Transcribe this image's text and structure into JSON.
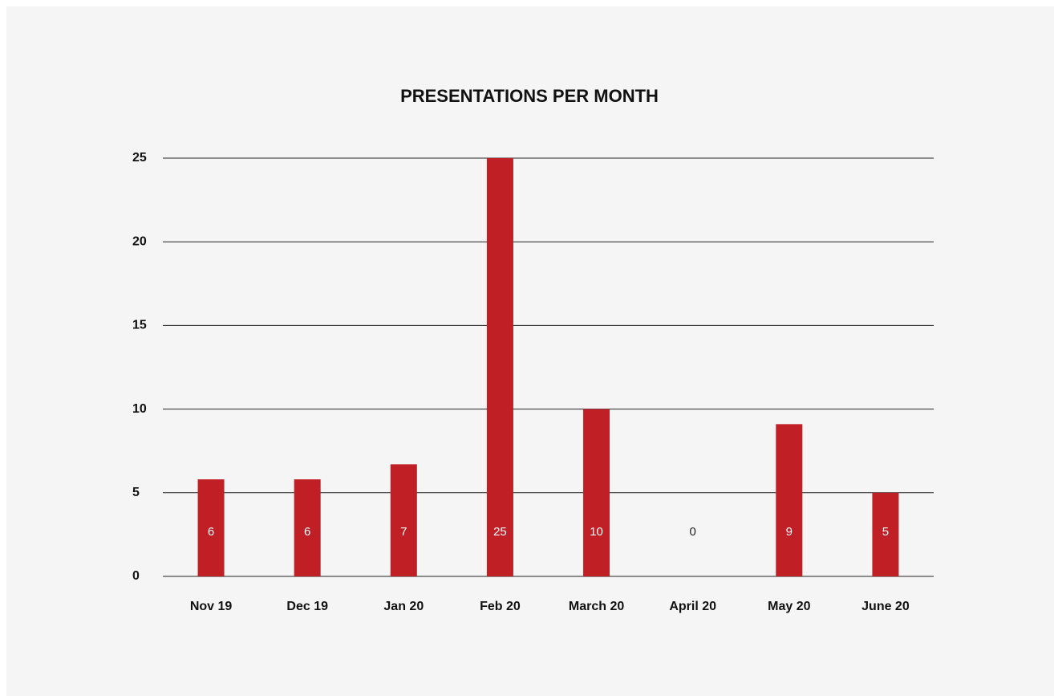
{
  "chart_data": {
    "type": "bar",
    "title": "PRESENTATIONS PER MONTH",
    "categories": [
      "Nov 19",
      "Dec 19",
      "Jan 20",
      "Feb 20",
      "March 20",
      "April 20",
      "May 20",
      "June 20"
    ],
    "values": [
      5.8,
      5.8,
      6.7,
      25,
      10,
      0,
      9.1,
      5
    ],
    "value_labels": [
      "6",
      "6",
      "7",
      "25",
      "10",
      "0",
      "9",
      "5"
    ],
    "color": "#c01f26",
    "ylim": [
      0,
      25
    ],
    "yticks": [
      0,
      5,
      10,
      15,
      20,
      25
    ],
    "grid": true
  }
}
